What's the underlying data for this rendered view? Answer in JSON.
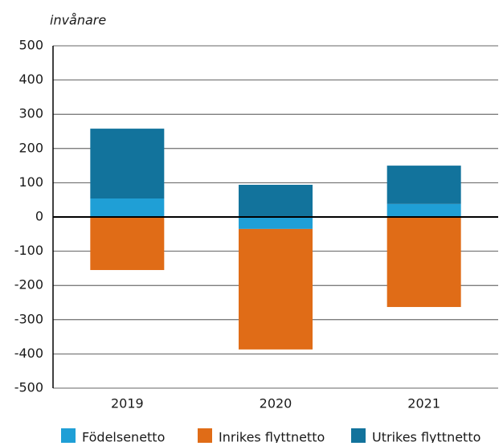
{
  "chart_data": {
    "type": "bar",
    "stacked": true,
    "y_axis_label": "invånare",
    "categories": [
      "2019",
      "2020",
      "2021"
    ],
    "series": [
      {
        "name": "Födelsenetto",
        "color": "#1f9fd6",
        "values": [
          54,
          -35,
          38
        ]
      },
      {
        "name": "Inrikes flyttnetto",
        "color": "#e06c17",
        "values": [
          -155,
          -352,
          -263
        ]
      },
      {
        "name": "Utrikes flyttnetto",
        "color": "#12739c",
        "values": [
          204,
          94,
          112
        ]
      }
    ],
    "ylim": [
      -500,
      500
    ],
    "yticks": [
      -500,
      -400,
      -300,
      -200,
      -100,
      0,
      100,
      200,
      300,
      400,
      500
    ],
    "grid": true,
    "legend": "bottom"
  }
}
